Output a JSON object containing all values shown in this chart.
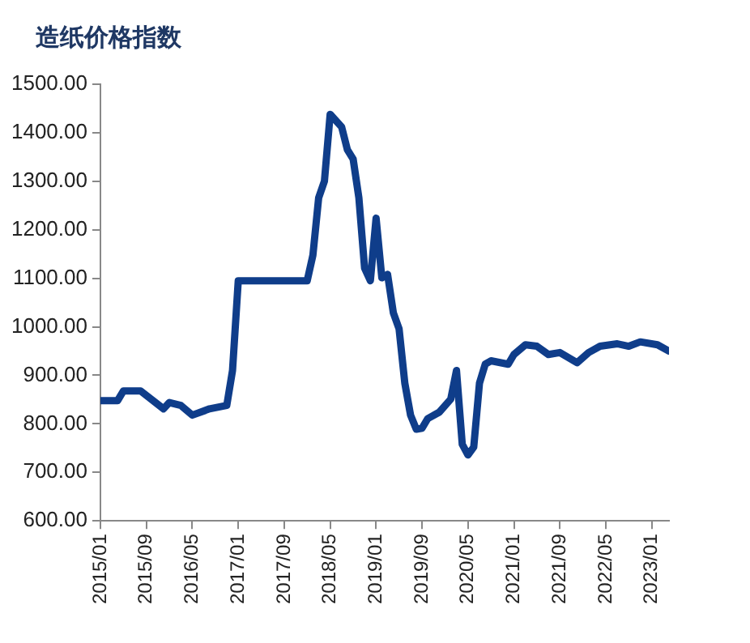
{
  "chart_data": {
    "type": "line",
    "title": "造纸价格指数",
    "x": [
      "2015-01",
      "2015-04",
      "2015-05",
      "2015-08",
      "2015-12",
      "2016-01",
      "2016-03",
      "2016-05",
      "2016-08",
      "2016-11",
      "2016-12",
      "2017-01",
      "2018-01",
      "2018-02",
      "2018-03",
      "2018-04",
      "2018-05",
      "2018-07",
      "2018-08",
      "2018-09",
      "2018-10",
      "2018-11",
      "2018-12",
      "2019-01",
      "2019-02",
      "2019-03",
      "2019-04",
      "2019-05",
      "2019-06",
      "2019-07",
      "2019-08",
      "2019-09",
      "2019-10",
      "2019-12",
      "2020-02",
      "2020-03",
      "2020-04",
      "2020-05",
      "2020-06",
      "2020-07",
      "2020-08",
      "2020-09",
      "2020-12",
      "2021-01",
      "2021-03",
      "2021-05",
      "2021-07",
      "2021-09",
      "2021-12",
      "2022-02",
      "2022-04",
      "2022-07",
      "2022-09",
      "2022-11",
      "2023-02",
      "2023-04"
    ],
    "series": [
      {
        "color": "#0f3d8a",
        "values": [
          848,
          848,
          868,
          868,
          831,
          844,
          838,
          818,
          831,
          838,
          910,
          1095,
          1095,
          1148,
          1266,
          1300,
          1438,
          1412,
          1365,
          1346,
          1266,
          1121,
          1095,
          1224,
          1101,
          1108,
          1029,
          996,
          884,
          818,
          789,
          791,
          811,
          824,
          851,
          910,
          758,
          736,
          752,
          884,
          923,
          930,
          923,
          943,
          963,
          960,
          943,
          947,
          926,
          947,
          960,
          965,
          960,
          969,
          963,
          950
        ]
      }
    ],
    "xlim": [
      "2015-01",
      "2023-04"
    ],
    "xticks": [
      {
        "value": "2015-01",
        "label": "2015/01"
      },
      {
        "value": "2015-09",
        "label": "2015/09"
      },
      {
        "value": "2016-05",
        "label": "2016/05"
      },
      {
        "value": "2017-01",
        "label": "2017/01"
      },
      {
        "value": "2017-09",
        "label": "2017/09"
      },
      {
        "value": "2018-05",
        "label": "2018/05"
      },
      {
        "value": "2019-01",
        "label": "2019/01"
      },
      {
        "value": "2019-09",
        "label": "2019/09"
      },
      {
        "value": "2020-05",
        "label": "2020/05"
      },
      {
        "value": "2021-01",
        "label": "2021/01"
      },
      {
        "value": "2021-09",
        "label": "2021/09"
      },
      {
        "value": "2022-05",
        "label": "2022/05"
      },
      {
        "value": "2023-01",
        "label": "2023/01"
      }
    ],
    "ylim": [
      600,
      1500
    ],
    "yticks": [
      {
        "value": 600,
        "label": "600.00"
      },
      {
        "value": 700,
        "label": "700.00"
      },
      {
        "value": 800,
        "label": "800.00"
      },
      {
        "value": 900,
        "label": "900.00"
      },
      {
        "value": 1000,
        "label": "1000.00"
      },
      {
        "value": 1100,
        "label": "1100.00"
      },
      {
        "value": 1200,
        "label": "1200.00"
      },
      {
        "value": 1300,
        "label": "1300.00"
      },
      {
        "value": 1400,
        "label": "1400.00"
      },
      {
        "value": 1500,
        "label": "1500.00"
      }
    ],
    "grid": false,
    "legend": false,
    "marker": "none",
    "line_style": "solid"
  }
}
